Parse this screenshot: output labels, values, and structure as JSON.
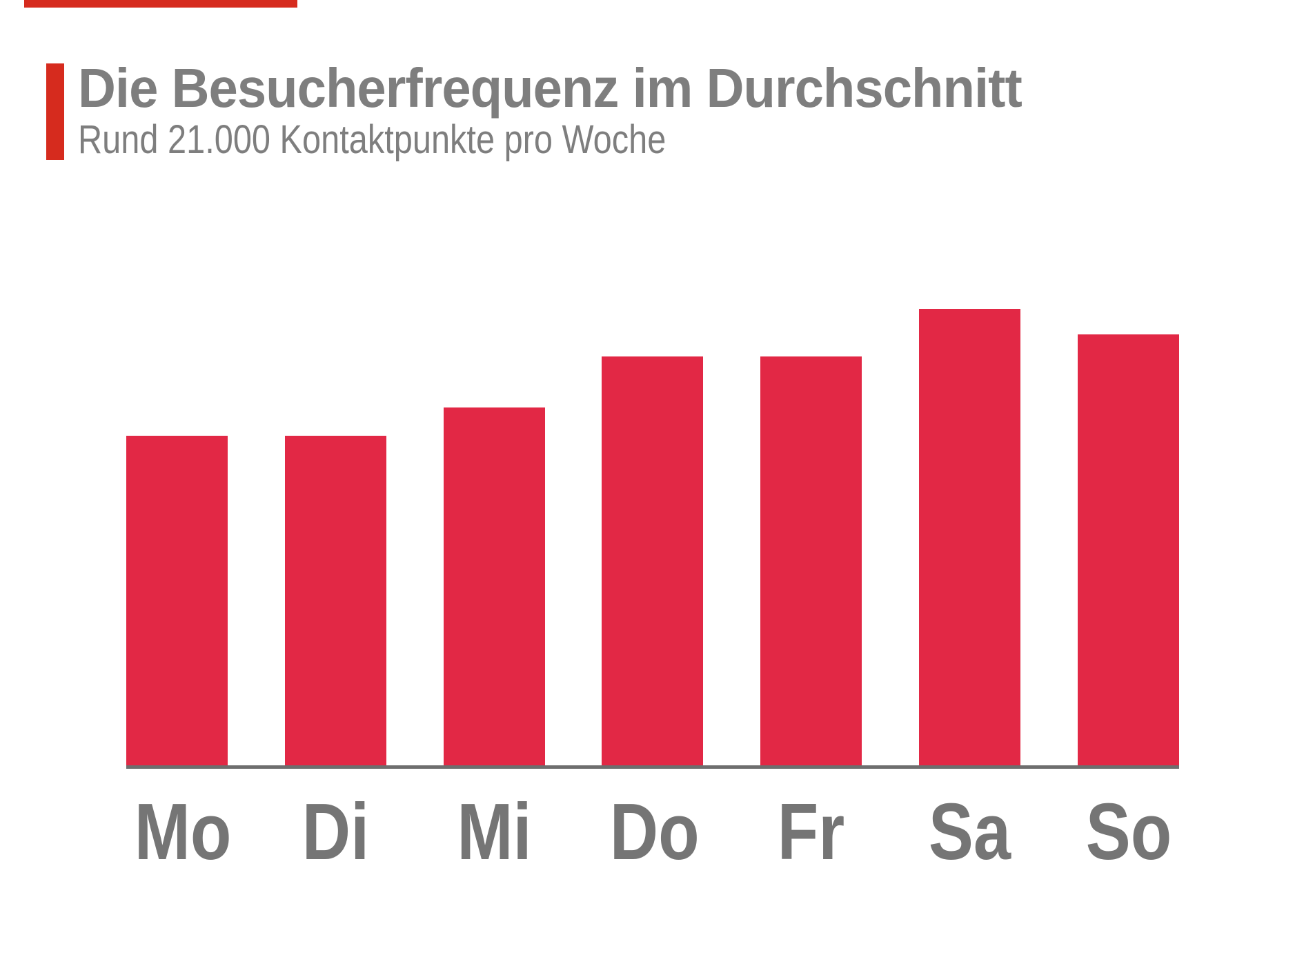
{
  "page": {
    "background": "#ffffff"
  },
  "header": {
    "title": "Die Besucherfrequenz im Durchschnitt",
    "subtitle": "Rund 21.000 Kontaktpunkte pro Woche"
  },
  "colors": {
    "bar_red": "#e22845",
    "accent_red": "#d62b1e",
    "title_gray": "#7e7e7e",
    "axis_gray": "#6e6e6e",
    "label_gray": "#757575"
  },
  "chart_data": {
    "type": "bar",
    "title": "Die Besucherfrequenz im Durchschnitt",
    "subtitle": "Rund 21.000 Kontaktpunkte pro Woche",
    "categories": [
      "Mo",
      "Di",
      "Mi",
      "Do",
      "Fr",
      "Sa",
      "So"
    ],
    "values": [
      478,
      478,
      519,
      593,
      593,
      662,
      625
    ],
    "values_note": "relative bar heights in pixels; chart displays no numeric y-axis, gridlines or data labels",
    "xlabel": "",
    "ylabel": "",
    "ylim": [
      0,
      700
    ],
    "grid": false,
    "legend": false,
    "bar_color": "#e22845",
    "baseline_color": "#6e6e6e"
  }
}
